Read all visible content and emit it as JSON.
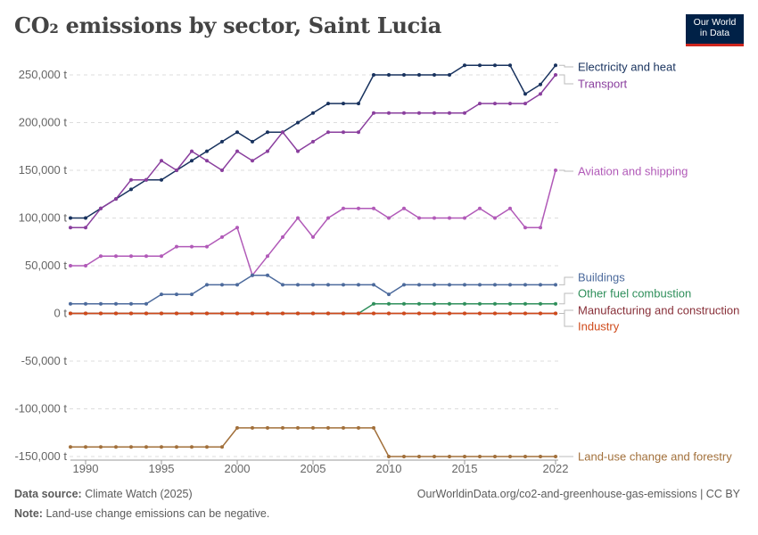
{
  "header": {
    "title": "CO₂ emissions by sector, Saint Lucia",
    "logo_line1": "Our World",
    "logo_line2": "in Data"
  },
  "footer": {
    "source_label": "Data source:",
    "source_text": "Climate Watch (2025)",
    "url_text": "OurWorldinData.org/co2-and-greenhouse-gas-emissions | CC BY",
    "note_label": "Note:",
    "note_text": "Land-use change emissions can be negative."
  },
  "chart_data": {
    "type": "line",
    "title": "CO₂ emissions by sector, Saint Lucia",
    "xlabel": "",
    "ylabel": "",
    "xlim": [
      1989,
      2022
    ],
    "ylim": [
      -150000,
      250000
    ],
    "y_ticks": [
      -150000,
      -100000,
      -50000,
      0,
      50000,
      100000,
      150000,
      200000,
      250000
    ],
    "y_tick_labels": [
      "-150,000 t",
      "-100,000 t",
      "-50,000 t",
      "0 t",
      "50,000 t",
      "100,000 t",
      "150,000 t",
      "200,000 t",
      "250,000 t"
    ],
    "x_ticks": [
      1990,
      1995,
      2000,
      2005,
      2010,
      2015,
      2022
    ],
    "x_tick_labels": [
      "1990",
      "1995",
      "2000",
      "2005",
      "2010",
      "2015",
      "2022"
    ],
    "grid": "horizontal dashed",
    "legend": "right, labels at line ends",
    "x": [
      1989,
      1990,
      1991,
      1992,
      1993,
      1994,
      1995,
      1996,
      1997,
      1998,
      1999,
      2000,
      2001,
      2002,
      2003,
      2004,
      2005,
      2006,
      2007,
      2008,
      2009,
      2010,
      2011,
      2012,
      2013,
      2014,
      2015,
      2016,
      2017,
      2018,
      2019,
      2020,
      2021,
      2022
    ],
    "series": [
      {
        "name": "Electricity and heat",
        "color": "#18325e",
        "values": [
          100000,
          100000,
          110000,
          120000,
          130000,
          140000,
          140000,
          150000,
          160000,
          170000,
          180000,
          190000,
          180000,
          190000,
          190000,
          200000,
          210000,
          220000,
          220000,
          220000,
          250000,
          250000,
          250000,
          250000,
          250000,
          250000,
          260000,
          260000,
          260000,
          260000,
          230000,
          240000,
          260000,
          null
        ]
      },
      {
        "name": "Transport",
        "color": "#8a3f9e",
        "values": [
          90000,
          90000,
          110000,
          120000,
          140000,
          140000,
          160000,
          150000,
          170000,
          160000,
          150000,
          170000,
          160000,
          170000,
          190000,
          170000,
          180000,
          190000,
          190000,
          190000,
          210000,
          210000,
          210000,
          210000,
          210000,
          210000,
          210000,
          220000,
          220000,
          220000,
          220000,
          230000,
          250000,
          null
        ]
      },
      {
        "name": "Aviation and shipping",
        "color": "#b15ab8",
        "values": [
          50000,
          50000,
          60000,
          60000,
          60000,
          60000,
          60000,
          70000,
          70000,
          70000,
          80000,
          90000,
          40000,
          60000,
          80000,
          100000,
          80000,
          100000,
          110000,
          110000,
          110000,
          100000,
          110000,
          100000,
          100000,
          100000,
          100000,
          110000,
          100000,
          110000,
          90000,
          90000,
          150000,
          null
        ]
      },
      {
        "name": "Buildings",
        "color": "#4c6a9c",
        "values": [
          10000,
          10000,
          10000,
          10000,
          10000,
          10000,
          20000,
          20000,
          20000,
          30000,
          30000,
          30000,
          40000,
          40000,
          30000,
          30000,
          30000,
          30000,
          30000,
          30000,
          30000,
          20000,
          30000,
          30000,
          30000,
          30000,
          30000,
          30000,
          30000,
          30000,
          30000,
          30000,
          30000,
          null
        ]
      },
      {
        "name": "Other fuel combustion",
        "color": "#2f8f5b",
        "values": [
          0,
          0,
          0,
          0,
          0,
          0,
          0,
          0,
          0,
          0,
          0,
          0,
          0,
          0,
          0,
          0,
          0,
          0,
          0,
          0,
          10000,
          10000,
          10000,
          10000,
          10000,
          10000,
          10000,
          10000,
          10000,
          10000,
          10000,
          10000,
          10000,
          null
        ]
      },
      {
        "name": "Manufacturing and construction",
        "color": "#883039",
        "values": [
          0,
          0,
          0,
          0,
          0,
          0,
          0,
          0,
          0,
          0,
          0,
          0,
          0,
          0,
          0,
          0,
          0,
          0,
          0,
          0,
          0,
          0,
          0,
          0,
          0,
          0,
          0,
          0,
          0,
          0,
          0,
          0,
          0,
          null
        ]
      },
      {
        "name": "Industry",
        "color": "#cf4a1b",
        "values": [
          0,
          0,
          0,
          0,
          0,
          0,
          0,
          0,
          0,
          0,
          0,
          0,
          0,
          0,
          0,
          0,
          0,
          0,
          0,
          0,
          0,
          0,
          0,
          0,
          0,
          0,
          0,
          0,
          0,
          0,
          0,
          0,
          0,
          null
        ]
      },
      {
        "name": "Land-use change and forestry",
        "color": "#a2703b",
        "values": [
          -140000,
          -140000,
          -140000,
          -140000,
          -140000,
          -140000,
          -140000,
          -140000,
          -140000,
          -140000,
          -140000,
          -120000,
          -120000,
          -120000,
          -120000,
          -120000,
          -120000,
          -120000,
          -120000,
          -120000,
          -120000,
          -150000,
          -150000,
          -150000,
          -150000,
          -150000,
          -150000,
          -150000,
          -150000,
          -150000,
          -150000,
          -150000,
          -150000,
          null
        ]
      }
    ]
  }
}
